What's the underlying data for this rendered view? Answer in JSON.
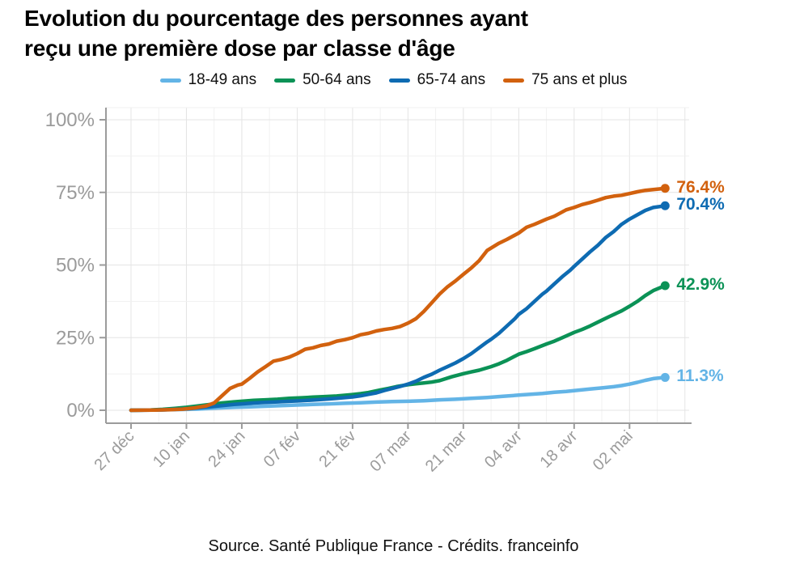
{
  "title": {
    "line1": "Evolution du pourcentage des personnes ayant",
    "line2": "reçu une première dose par classe d'âge"
  },
  "source": "Source. Santé Publique France - Crédits. franceinfo",
  "chart_data": {
    "type": "line",
    "title": "Evolution du pourcentage des personnes ayant reçu une première dose par classe d'âge",
    "xlabel": "",
    "ylabel": "",
    "legend_position": "top",
    "grid": "major and minor, light gray",
    "x_axis": {
      "unit": "days since 27 déc",
      "tick_days": [
        0,
        14,
        28,
        42,
        56,
        70,
        84,
        98,
        112,
        126
      ],
      "tick_labels": [
        "27 déc",
        "10 jan",
        "24 jan",
        "07 fév",
        "21 fév",
        "07 mar",
        "21 mar",
        "04 avr",
        "18 avr",
        "02 mai"
      ],
      "label_rotation_deg": -45
    },
    "y_axis": {
      "range": [
        0,
        100
      ],
      "tick_values": [
        0,
        25,
        50,
        75,
        100
      ],
      "tick_labels": [
        "0%",
        "25%",
        "50%",
        "75%",
        "100%"
      ]
    },
    "axis_text_color": "#9b9b9b",
    "series": [
      {
        "name": "18-49 ans",
        "color": "#63b4e6",
        "end_label": "11.3%",
        "end_value": 11.3,
        "points": [
          [
            0,
            0
          ],
          [
            7,
            0.1
          ],
          [
            14,
            0.3
          ],
          [
            18,
            0.5
          ],
          [
            22,
            0.8
          ],
          [
            26,
            1
          ],
          [
            30,
            1.2
          ],
          [
            34,
            1.4
          ],
          [
            38,
            1.6
          ],
          [
            42,
            1.8
          ],
          [
            46,
            2
          ],
          [
            50,
            2.2
          ],
          [
            54,
            2.4
          ],
          [
            58,
            2.6
          ],
          [
            62,
            2.8
          ],
          [
            66,
            3
          ],
          [
            70,
            3.1
          ],
          [
            74,
            3.3
          ],
          [
            78,
            3.6
          ],
          [
            82,
            3.8
          ],
          [
            86,
            4.1
          ],
          [
            90,
            4.4
          ],
          [
            94,
            4.8
          ],
          [
            98,
            5.2
          ],
          [
            101,
            5.5
          ],
          [
            104,
            5.8
          ],
          [
            107,
            6.2
          ],
          [
            110,
            6.5
          ],
          [
            113,
            6.9
          ],
          [
            116,
            7.3
          ],
          [
            119,
            7.7
          ],
          [
            122,
            8.1
          ],
          [
            124,
            8.5
          ],
          [
            126,
            9
          ],
          [
            128,
            9.6
          ],
          [
            130,
            10.3
          ],
          [
            132,
            10.9
          ],
          [
            135,
            11.3
          ]
        ]
      },
      {
        "name": "50-64 ans",
        "color": "#0b9256",
        "end_label": "42.9%",
        "end_value": 42.9,
        "points": [
          [
            0,
            0
          ],
          [
            5,
            0.1
          ],
          [
            8,
            0.3
          ],
          [
            11,
            0.6
          ],
          [
            14,
            1
          ],
          [
            17,
            1.5
          ],
          [
            20,
            2
          ],
          [
            23,
            2.5
          ],
          [
            26,
            2.9
          ],
          [
            28,
            3.1
          ],
          [
            31,
            3.4
          ],
          [
            34,
            3.6
          ],
          [
            37,
            3.8
          ],
          [
            40,
            4.1
          ],
          [
            43,
            4.3
          ],
          [
            46,
            4.5
          ],
          [
            49,
            4.7
          ],
          [
            52,
            4.9
          ],
          [
            56,
            5.4
          ],
          [
            58,
            5.7
          ],
          [
            60,
            6.1
          ],
          [
            63,
            7
          ],
          [
            65,
            7.5
          ],
          [
            67,
            8.1
          ],
          [
            70,
            8.8
          ],
          [
            72,
            9.1
          ],
          [
            74,
            9.4
          ],
          [
            76,
            9.7
          ],
          [
            78,
            10.2
          ],
          [
            81,
            11.5
          ],
          [
            84,
            12.6
          ],
          [
            86,
            13.2
          ],
          [
            88,
            13.8
          ],
          [
            91,
            15
          ],
          [
            93,
            16
          ],
          [
            95,
            17.2
          ],
          [
            98,
            19.3
          ],
          [
            100,
            20.2
          ],
          [
            102,
            21.2
          ],
          [
            105,
            22.8
          ],
          [
            107,
            23.8
          ],
          [
            109,
            25
          ],
          [
            112,
            26.8
          ],
          [
            114,
            27.8
          ],
          [
            116,
            29
          ],
          [
            119,
            31
          ],
          [
            121,
            32.3
          ],
          [
            124,
            34.2
          ],
          [
            126,
            35.8
          ],
          [
            128,
            37.5
          ],
          [
            130,
            39.5
          ],
          [
            132,
            41.2
          ],
          [
            135,
            42.9
          ]
        ]
      },
      {
        "name": "65-74 ans",
        "color": "#0e6bb2",
        "end_label": "70.4%",
        "end_value": 70.4,
        "points": [
          [
            0,
            0
          ],
          [
            5,
            0.05
          ],
          [
            8,
            0.15
          ],
          [
            11,
            0.3
          ],
          [
            14,
            0.5
          ],
          [
            17,
            0.8
          ],
          [
            20,
            1.2
          ],
          [
            23,
            1.6
          ],
          [
            26,
            2
          ],
          [
            28,
            2.2
          ],
          [
            31,
            2.5
          ],
          [
            34,
            2.7
          ],
          [
            37,
            2.9
          ],
          [
            40,
            3.1
          ],
          [
            43,
            3.3
          ],
          [
            46,
            3.5
          ],
          [
            49,
            3.8
          ],
          [
            52,
            4.1
          ],
          [
            56,
            4.6
          ],
          [
            58,
            5
          ],
          [
            60,
            5.5
          ],
          [
            62,
            6
          ],
          [
            64,
            6.8
          ],
          [
            66,
            7.5
          ],
          [
            68,
            8.2
          ],
          [
            70,
            9
          ],
          [
            72,
            10
          ],
          [
            74,
            11.3
          ],
          [
            76,
            12.4
          ],
          [
            78,
            13.8
          ],
          [
            80,
            15
          ],
          [
            82,
            16.3
          ],
          [
            84,
            17.8
          ],
          [
            86,
            19.5
          ],
          [
            88,
            21.5
          ],
          [
            90,
            23.5
          ],
          [
            91,
            24.4
          ],
          [
            93,
            26.5
          ],
          [
            95,
            29
          ],
          [
            97,
            31.5
          ],
          [
            98,
            33
          ],
          [
            100,
            35
          ],
          [
            102,
            37.5
          ],
          [
            104,
            40
          ],
          [
            105,
            41
          ],
          [
            107,
            43.5
          ],
          [
            109,
            46
          ],
          [
            111,
            48.2
          ],
          [
            112,
            49.5
          ],
          [
            114,
            52
          ],
          [
            116,
            54.5
          ],
          [
            118,
            56.8
          ],
          [
            120,
            59.5
          ],
          [
            122,
            61.5
          ],
          [
            124,
            64
          ],
          [
            126,
            65.8
          ],
          [
            128,
            67.3
          ],
          [
            130,
            68.8
          ],
          [
            132,
            69.8
          ],
          [
            135,
            70.4
          ]
        ]
      },
      {
        "name": "75 ans et plus",
        "color": "#d2610e",
        "end_label": "76.4%",
        "end_value": 76.4,
        "points": [
          [
            0,
            0
          ],
          [
            6,
            0.05
          ],
          [
            10,
            0.2
          ],
          [
            13,
            0.4
          ],
          [
            16,
            0.8
          ],
          [
            19,
            1.5
          ],
          [
            21,
            2.5
          ],
          [
            23,
            5
          ],
          [
            25,
            7.5
          ],
          [
            27,
            8.7
          ],
          [
            28,
            9
          ],
          [
            30,
            11
          ],
          [
            32,
            13.2
          ],
          [
            34,
            15
          ],
          [
            36,
            16.9
          ],
          [
            38,
            17.5
          ],
          [
            40,
            18.3
          ],
          [
            42,
            19.5
          ],
          [
            44,
            21
          ],
          [
            46,
            21.5
          ],
          [
            48,
            22.3
          ],
          [
            50,
            22.8
          ],
          [
            52,
            23.8
          ],
          [
            54,
            24.3
          ],
          [
            56,
            25
          ],
          [
            58,
            26
          ],
          [
            60,
            26.5
          ],
          [
            62,
            27.3
          ],
          [
            64,
            27.8
          ],
          [
            66,
            28.2
          ],
          [
            68,
            28.8
          ],
          [
            70,
            30
          ],
          [
            72,
            31.5
          ],
          [
            74,
            34
          ],
          [
            76,
            37
          ],
          [
            78,
            40
          ],
          [
            80,
            42.5
          ],
          [
            82,
            44.5
          ],
          [
            84,
            46.8
          ],
          [
            86,
            49
          ],
          [
            88,
            51.5
          ],
          [
            90,
            55
          ],
          [
            93,
            57.5
          ],
          [
            95,
            58.8
          ],
          [
            98,
            61
          ],
          [
            100,
            63
          ],
          [
            102,
            64
          ],
          [
            105,
            65.8
          ],
          [
            107,
            66.8
          ],
          [
            110,
            69
          ],
          [
            112,
            69.8
          ],
          [
            114,
            70.8
          ],
          [
            116,
            71.5
          ],
          [
            118,
            72.3
          ],
          [
            120,
            73.2
          ],
          [
            122,
            73.7
          ],
          [
            124,
            74
          ],
          [
            126,
            74.6
          ],
          [
            128,
            75.2
          ],
          [
            130,
            75.7
          ],
          [
            132,
            76
          ],
          [
            135,
            76.4
          ]
        ]
      }
    ]
  }
}
